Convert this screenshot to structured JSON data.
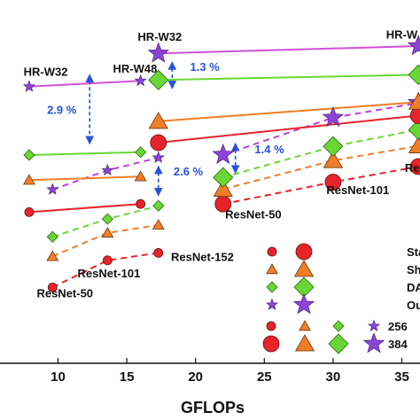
{
  "chart_data": {
    "type": "scatter",
    "title": "",
    "xlabel": "GFLOPs",
    "ylabel": "",
    "xlim": [
      7.5,
      36.2
    ],
    "ylim": [
      0,
      100
    ],
    "x_ticks": [
      10,
      15,
      20,
      25,
      30,
      35
    ],
    "grid": false,
    "colors": {
      "standard": "#e8232a",
      "shift": "#f07e27",
      "darts": "#69d635",
      "ours": "#8b44d8",
      "ours_line": "#c23ce0",
      "hr_line": "#d050d8",
      "annotation": "#2a52d8"
    },
    "series": [
      {
        "group": "standard",
        "size": "256",
        "style": "dashed",
        "points": [
          [
            9.6,
            8.3
          ],
          [
            13.6,
            18.6
          ],
          [
            17.3,
            21.4
          ]
        ]
      },
      {
        "group": "shift",
        "size": "256",
        "style": "dashed",
        "points": [
          [
            9.6,
            20.1
          ],
          [
            13.6,
            29.0
          ],
          [
            17.3,
            32.0
          ]
        ]
      },
      {
        "group": "darts",
        "size": "256",
        "style": "dashed",
        "points": [
          [
            9.6,
            27.5
          ],
          [
            13.6,
            34.3
          ],
          [
            17.3,
            39.3
          ]
        ]
      },
      {
        "group": "ours",
        "size": "256",
        "style": "dashed",
        "points": [
          [
            9.6,
            45.5
          ],
          [
            13.6,
            52.8
          ],
          [
            17.3,
            57.6
          ]
        ]
      },
      {
        "group": "standard",
        "size": "256",
        "style": "solid",
        "points": [
          [
            7.9,
            36.9
          ],
          [
            16.0,
            40.0
          ]
        ]
      },
      {
        "group": "shift",
        "size": "256",
        "style": "solid",
        "points": [
          [
            7.9,
            49.1
          ],
          [
            16.0,
            50.4
          ]
        ]
      },
      {
        "group": "darts",
        "size": "256",
        "style": "solid",
        "points": [
          [
            7.9,
            58.6
          ],
          [
            16.0,
            59.7
          ]
        ]
      },
      {
        "group": "ours",
        "size": "256",
        "style": "solid",
        "points": [
          [
            7.9,
            84.6
          ],
          [
            16.0,
            86.8
          ]
        ]
      },
      {
        "group": "standard",
        "size": "384",
        "style": "dashed",
        "points": [
          [
            22.0,
            40.0
          ],
          [
            30.0,
            48.3
          ],
          [
            36.2,
            54.2
          ]
        ]
      },
      {
        "group": "shift",
        "size": "384",
        "style": "dashed",
        "points": [
          [
            22.0,
            45.6
          ],
          [
            30.0,
            56.5
          ],
          [
            36.2,
            62.1
          ]
        ]
      },
      {
        "group": "darts",
        "size": "384",
        "style": "dashed",
        "points": [
          [
            22.0,
            50.1
          ],
          [
            30.0,
            61.9
          ],
          [
            36.2,
            68.2
          ]
        ]
      },
      {
        "group": "ours",
        "size": "384",
        "style": "dashed",
        "points": [
          [
            22.0,
            58.7
          ],
          [
            30.0,
            72.8
          ],
          [
            36.2,
            78.4
          ]
        ]
      },
      {
        "group": "standard",
        "size": "384",
        "style": "solid",
        "points": [
          [
            17.3,
            63.3
          ],
          [
            36.2,
            73.6
          ]
        ]
      },
      {
        "group": "shift",
        "size": "384",
        "style": "solid",
        "points": [
          [
            17.3,
            71.4
          ],
          [
            36.2,
            78.7
          ]
        ]
      },
      {
        "group": "darts",
        "size": "384",
        "style": "solid",
        "points": [
          [
            17.3,
            87.1
          ],
          [
            36.2,
            89.1
          ]
        ]
      },
      {
        "group": "ours",
        "size": "384",
        "style": "solid",
        "points": [
          [
            17.3,
            97.2
          ],
          [
            36.2,
            100.0
          ]
        ]
      }
    ],
    "point_labels": [
      {
        "text": "HR-W32",
        "x": 9.1,
        "y": 88.7
      },
      {
        "text": "HR-W48",
        "x": 15.6,
        "y": 89.9
      },
      {
        "text": "HR-W32",
        "x": 17.4,
        "y": 102.0
      },
      {
        "text": "HR-W",
        "x": 35.0,
        "y": 102.8
      },
      {
        "text": "ResNet-50",
        "x": 10.5,
        "y": 4.5
      },
      {
        "text": "ResNet-101",
        "x": 13.7,
        "y": 12.1
      },
      {
        "text": "ResNet-152",
        "x": 20.5,
        "y": 18.3
      },
      {
        "text": "ResNet-50",
        "x": 24.2,
        "y": 34.5
      },
      {
        "text": "ResNet-101",
        "x": 31.8,
        "y": 43.8
      },
      {
        "text": "ResNet-",
        "x": 36.8,
        "y": 52.2
      }
    ],
    "annotations": [
      {
        "text": "1.3 %",
        "x0": 18.3,
        "y0": 93.9,
        "x1": 18.3,
        "y1": 83.9,
        "tx": 19.6,
        "ty": 90.5
      },
      {
        "text": "2.9 %",
        "x0": 12.3,
        "y0": 89.1,
        "x1": 12.3,
        "y1": 62.9,
        "tx": 9.2,
        "ty": 74.2
      },
      {
        "text": "2.6 %",
        "x0": 17.3,
        "y0": 54.3,
        "x1": 17.3,
        "y1": 43.2,
        "tx": 18.4,
        "ty": 50.8
      },
      {
        "text": "1.4 %",
        "x0": 22.9,
        "y0": 63.0,
        "x1": 22.9,
        "y1": 51.8,
        "tx": 24.3,
        "ty": 59.2
      }
    ],
    "legend": {
      "placement": "bottom-right",
      "col_headers": [
        "256",
        "384"
      ],
      "entries": [
        {
          "group": "standard",
          "label": "Stan"
        },
        {
          "group": "shift",
          "label": "Shift"
        },
        {
          "group": "darts",
          "label": "DAR"
        },
        {
          "group": "ours",
          "label": "Ours"
        }
      ]
    }
  }
}
